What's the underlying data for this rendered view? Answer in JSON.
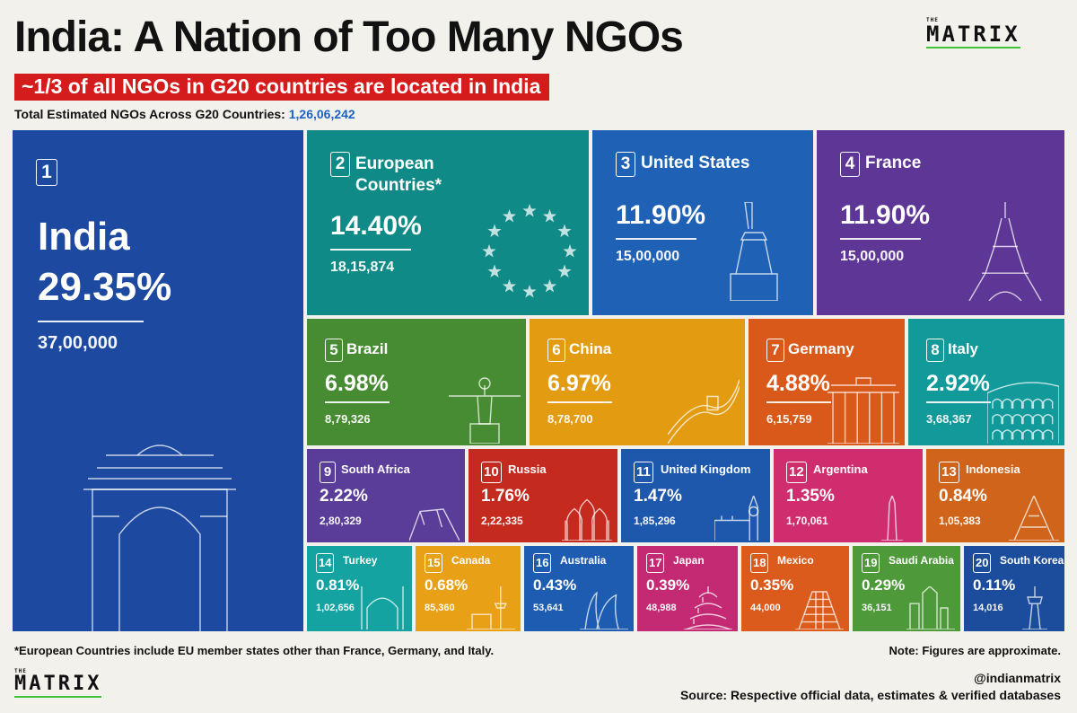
{
  "header": {
    "title": "India: A Nation of Too Many NGOs",
    "subtitle": "~1/3 of all NGOs in G20 countries are located in India",
    "total_label": "Total Estimated NGOs Across G20 Countries:",
    "total_value": "1,26,06,242"
  },
  "logo": {
    "small": "THE",
    "word": "MATRIX"
  },
  "chart_data": {
    "type": "treemap",
    "title": "India: A Nation of Too Many NGOs",
    "subtitle": "~1/3 of all NGOs in G20 countries are located in India",
    "total": "1,26,06,242",
    "items": [
      {
        "rank": "1",
        "name": "India",
        "share_pct": 29.35,
        "pct_label": "29.35%",
        "count": "37,00,000",
        "color": "#1d4aa0",
        "icon": "india-gate-icon"
      },
      {
        "rank": "2",
        "name": "European Countries*",
        "name_lines": [
          "European",
          "Countries*"
        ],
        "share_pct": 14.4,
        "pct_label": "14.40%",
        "count": "18,15,874",
        "color": "#0f8a86",
        "icon": "eu-stars-icon"
      },
      {
        "rank": "3",
        "name": "United States",
        "share_pct": 11.9,
        "pct_label": "11.90%",
        "count": "15,00,000",
        "color": "#1f61b5",
        "icon": "statue-of-liberty-icon"
      },
      {
        "rank": "4",
        "name": "France",
        "share_pct": 11.9,
        "pct_label": "11.90%",
        "count": "15,00,000",
        "color": "#5e3796",
        "icon": "eiffel-tower-icon"
      },
      {
        "rank": "5",
        "name": "Brazil",
        "share_pct": 6.98,
        "pct_label": "6.98%",
        "count": "8,79,326",
        "color": "#478c32",
        "icon": "christ-the-redeemer-icon"
      },
      {
        "rank": "6",
        "name": "China",
        "share_pct": 6.97,
        "pct_label": "6.97%",
        "count": "8,78,700",
        "color": "#e39b12",
        "icon": "great-wall-icon"
      },
      {
        "rank": "7",
        "name": "Germany",
        "share_pct": 4.88,
        "pct_label": "4.88%",
        "count": "6,15,759",
        "color": "#d9591a",
        "icon": "brandenburg-gate-icon"
      },
      {
        "rank": "8",
        "name": "Italy",
        "share_pct": 2.92,
        "pct_label": "2.92%",
        "count": "3,68,367",
        "color": "#12999a",
        "icon": "colosseum-icon"
      },
      {
        "rank": "9",
        "name": "South Africa",
        "share_pct": 2.22,
        "pct_label": "2.22%",
        "count": "2,80,329",
        "color": "#5a3d98",
        "icon": "table-mountain-icon"
      },
      {
        "rank": "10",
        "name": "Russia",
        "share_pct": 1.76,
        "pct_label": "1.76%",
        "count": "2,22,335",
        "color": "#c52a1f",
        "icon": "st-basils-cathedral-icon"
      },
      {
        "rank": "11",
        "name": "United Kingdom",
        "share_pct": 1.47,
        "pct_label": "1.47%",
        "count": "1,85,296",
        "color": "#1e58ad",
        "icon": "big-ben-icon"
      },
      {
        "rank": "12",
        "name": "Argentina",
        "share_pct": 1.35,
        "pct_label": "1.35%",
        "count": "1,70,061",
        "color": "#cf2d6e",
        "icon": "obelisk-icon"
      },
      {
        "rank": "13",
        "name": "Indonesia",
        "share_pct": 0.84,
        "pct_label": "0.84%",
        "count": "1,05,383",
        "color": "#d0641a",
        "icon": "temple-icon"
      },
      {
        "rank": "14",
        "name": "Turkey",
        "share_pct": 0.81,
        "pct_label": "0.81%",
        "count": "1,02,656",
        "color": "#14a3a0",
        "icon": "mosque-icon"
      },
      {
        "rank": "15",
        "name": "Canada",
        "share_pct": 0.68,
        "pct_label": "0.68%",
        "count": "85,360",
        "color": "#e8a016",
        "icon": "cn-tower-icon"
      },
      {
        "rank": "16",
        "name": "Australia",
        "share_pct": 0.43,
        "pct_label": "0.43%",
        "count": "53,641",
        "color": "#1d5cb1",
        "icon": "opera-house-icon"
      },
      {
        "rank": "17",
        "name": "Japan",
        "share_pct": 0.39,
        "pct_label": "0.39%",
        "count": "48,988",
        "color": "#c32a73",
        "icon": "pagoda-icon"
      },
      {
        "rank": "18",
        "name": "Mexico",
        "share_pct": 0.35,
        "pct_label": "0.35%",
        "count": "44,000",
        "color": "#db5b1c",
        "icon": "pyramid-icon"
      },
      {
        "rank": "19",
        "name": "Saudi Arabia",
        "share_pct": 0.29,
        "pct_label": "0.29%",
        "count": "36,151",
        "color": "#4e9a3a",
        "icon": "skyline-icon"
      },
      {
        "rank": "20",
        "name": "South Korea",
        "share_pct": 0.11,
        "pct_label": "0.11%",
        "count": "14,016",
        "color": "#1c4c9c",
        "icon": "n-seoul-tower-icon"
      }
    ]
  },
  "footer": {
    "footnote": "*European Countries include EU member states other than France, Germany, and Italy.",
    "note": "Note: Figures are approximate.",
    "handle": "@indianmatrix",
    "source": "Source: Respective official data, estimates & verified databases"
  }
}
